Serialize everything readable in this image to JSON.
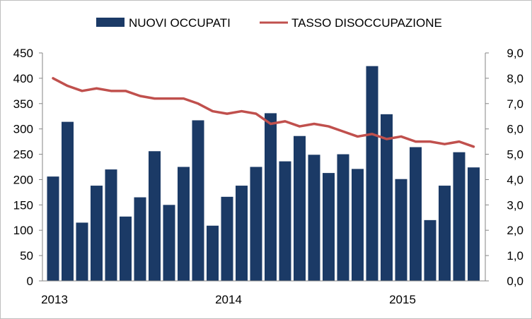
{
  "chart_data": {
    "type": "bar+line",
    "legend_position": "top",
    "colors": {
      "bars": "#1b3a66",
      "line": "#c0504d",
      "axis": "#868686"
    },
    "x_tick_labels": [
      "2013",
      "2014",
      "2015"
    ],
    "left_axis": {
      "ylim": [
        0,
        450
      ],
      "ticks": [
        "0",
        "50",
        "100",
        "150",
        "200",
        "250",
        "300",
        "350",
        "400",
        "450"
      ]
    },
    "right_axis": {
      "ylim": [
        0,
        9
      ],
      "ticks": [
        "0,0",
        "1,0",
        "2,0",
        "3,0",
        "4,0",
        "5,0",
        "6,0",
        "7,0",
        "8,0",
        "9,0"
      ]
    },
    "series": [
      {
        "name": "NUOVI OCCUPATI",
        "kind": "bar",
        "axis": "left",
        "values": [
          206,
          314,
          115,
          188,
          220,
          127,
          165,
          256,
          150,
          225,
          317,
          109,
          166,
          188,
          225,
          331,
          236,
          286,
          249,
          213,
          250,
          221,
          424,
          329,
          201,
          264,
          120,
          188,
          254,
          224
        ]
      },
      {
        "name": "TASSO DISOCCUPAZIONE",
        "kind": "line",
        "axis": "right",
        "values": [
          8.0,
          7.7,
          7.5,
          7.6,
          7.5,
          7.5,
          7.3,
          7.2,
          7.2,
          7.2,
          7.0,
          6.7,
          6.6,
          6.7,
          6.6,
          6.2,
          6.3,
          6.1,
          6.2,
          6.1,
          5.9,
          5.7,
          5.8,
          5.6,
          5.7,
          5.5,
          5.5,
          5.4,
          5.5,
          5.3
        ]
      }
    ]
  }
}
